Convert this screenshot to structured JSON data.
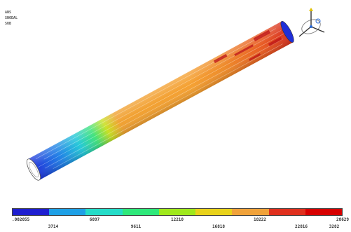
{
  "header": {
    "lines": [
      "ANS",
      "SNODAL",
      "SUB"
    ]
  },
  "triad": {
    "icon": "coordinate-triad-icon"
  },
  "legend": {
    "colors": [
      "#1f1fd0",
      "#1ea0e6",
      "#25dcc8",
      "#2ee87a",
      "#9fe81c",
      "#e8d21a",
      "#f0a23a",
      "#e0301e",
      "#d70000"
    ],
    "labels_top": [
      ".002055",
      "6097",
      "12210",
      "18222",
      "28629"
    ],
    "labels_bottom": [
      "3714",
      "9611",
      "16818",
      "22816",
      "3282"
    ]
  }
}
